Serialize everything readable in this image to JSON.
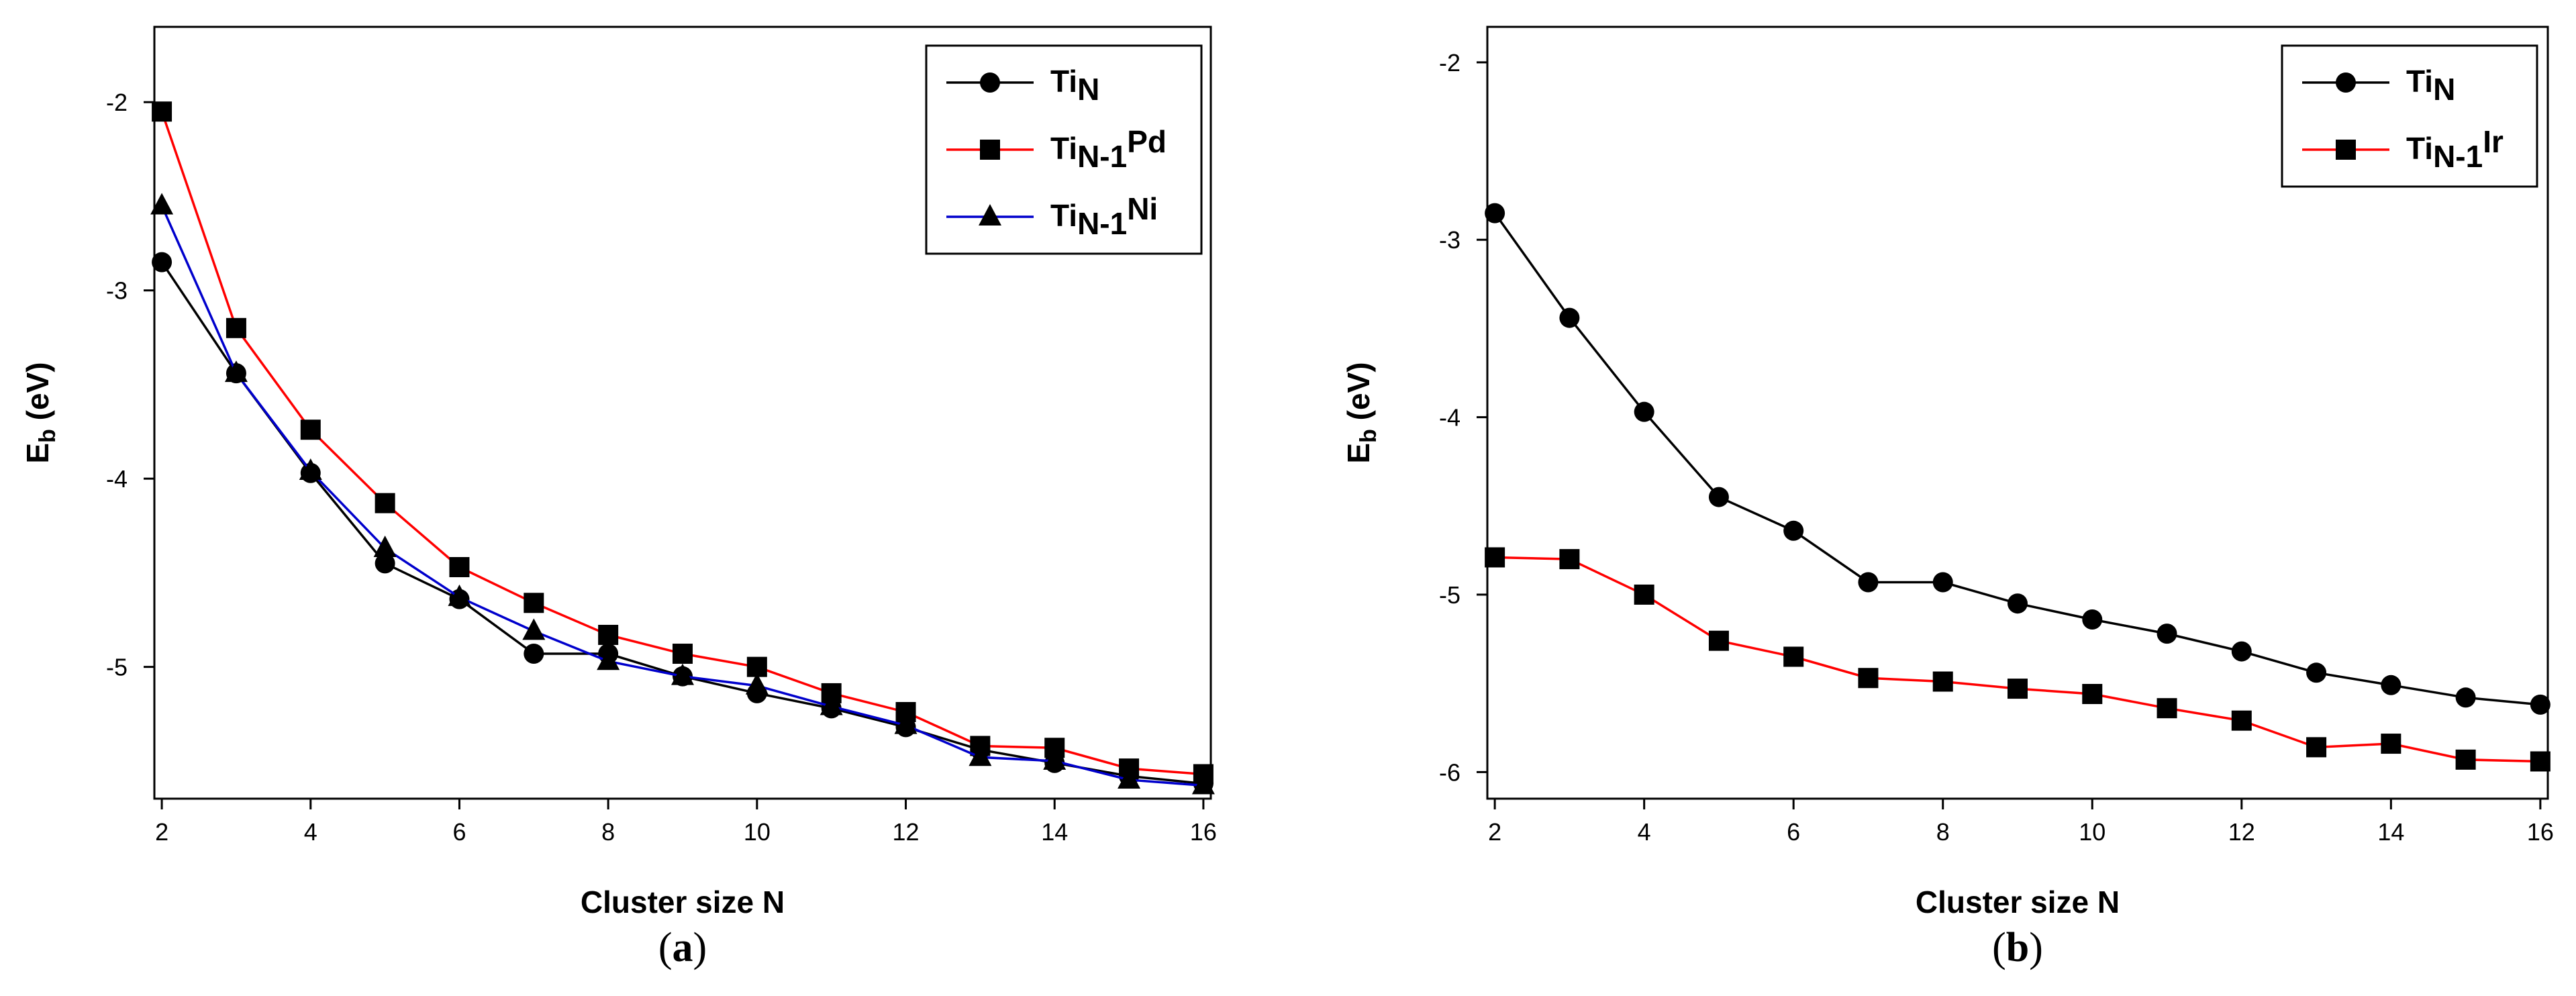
{
  "chart_data": [
    {
      "type": "line",
      "panel_label": "(a)",
      "panel_letter": "a",
      "xlabel": "Cluster size N",
      "ylabel_main": "E",
      "ylabel_sub": "b",
      "ylabel_unit": "(eV)",
      "xlim": [
        1.9,
        16.1
      ],
      "ylim": [
        -5.7,
        -1.6
      ],
      "xticks": [
        2,
        4,
        6,
        8,
        10,
        12,
        14,
        16
      ],
      "yticks": [
        -2,
        -3,
        -4,
        -5
      ],
      "legend_position": "top-right",
      "x": [
        2,
        3,
        4,
        5,
        6,
        7,
        8,
        9,
        10,
        11,
        12,
        13,
        14,
        15,
        16
      ],
      "series": [
        {
          "name_main": "Ti",
          "name_sub": "N",
          "name_suffix": "",
          "color": "#000000",
          "marker": "circle",
          "values": [
            -2.85,
            -3.44,
            -3.97,
            -4.45,
            -4.64,
            -4.93,
            -4.93,
            -5.05,
            -5.14,
            -5.22,
            -5.32,
            -5.44,
            -5.51,
            -5.58,
            -5.62
          ]
        },
        {
          "name_main": "Ti",
          "name_sub": "N-1",
          "name_suffix": "Pd",
          "color": "#ff0000",
          "marker": "square",
          "values": [
            -2.05,
            -3.2,
            -3.74,
            -4.13,
            -4.47,
            -4.66,
            -4.83,
            -4.93,
            -5.0,
            -5.14,
            -5.24,
            -5.42,
            -5.43,
            -5.54,
            -5.57
          ]
        },
        {
          "name_main": "Ti",
          "name_sub": "N-1",
          "name_suffix": "Ni",
          "color": "#0000cc",
          "marker": "triangle",
          "values": [
            -2.55,
            -3.44,
            -3.96,
            -4.37,
            -4.63,
            -4.81,
            -4.97,
            -5.05,
            -5.1,
            -5.21,
            -5.31,
            -5.48,
            -5.5,
            -5.6,
            -5.63
          ]
        }
      ]
    },
    {
      "type": "line",
      "panel_label": "(b)",
      "panel_letter": "b",
      "xlabel": "Cluster size N",
      "ylabel_main": "E",
      "ylabel_sub": "b",
      "ylabel_unit": "(eV)",
      "xlim": [
        1.9,
        16.1
      ],
      "ylim": [
        -6.15,
        -1.8
      ],
      "xticks": [
        2,
        4,
        6,
        8,
        10,
        12,
        14,
        16
      ],
      "yticks": [
        -2,
        -3,
        -4,
        -5,
        -6
      ],
      "legend_position": "top-right",
      "x": [
        2,
        3,
        4,
        5,
        6,
        7,
        8,
        9,
        10,
        11,
        12,
        13,
        14,
        15,
        16
      ],
      "series": [
        {
          "name_main": "Ti",
          "name_sub": "N",
          "name_suffix": "",
          "color": "#000000",
          "marker": "circle",
          "values": [
            -2.85,
            -3.44,
            -3.97,
            -4.45,
            -4.64,
            -4.93,
            -4.93,
            -5.05,
            -5.14,
            -5.22,
            -5.32,
            -5.44,
            -5.51,
            -5.58,
            -5.62
          ]
        },
        {
          "name_main": "Ti",
          "name_sub": "N-1",
          "name_suffix": "Ir",
          "color": "#ff0000",
          "marker": "square",
          "values": [
            -4.79,
            -4.8,
            -5.0,
            -5.26,
            -5.35,
            -5.47,
            -5.49,
            -5.53,
            -5.56,
            -5.64,
            -5.71,
            -5.86,
            -5.84,
            -5.93,
            -5.94
          ]
        }
      ]
    }
  ]
}
